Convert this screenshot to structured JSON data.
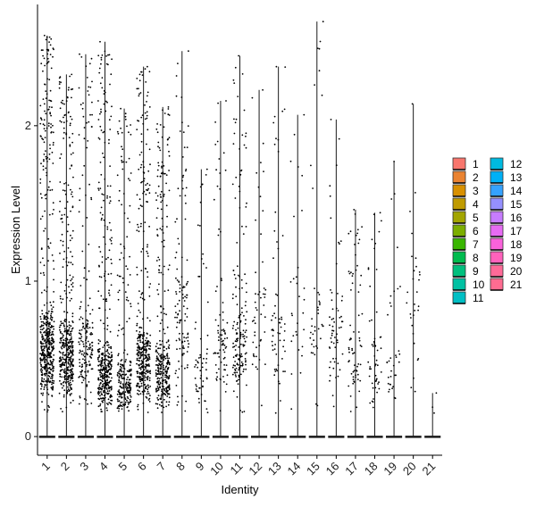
{
  "chart_data": {
    "type": "violin-jitter",
    "xlabel": "Identity",
    "ylabel": "Expression Level",
    "ylim": [
      -0.12,
      2.78
    ],
    "yticks": [
      0,
      1,
      2
    ],
    "categories": [
      "1",
      "2",
      "3",
      "4",
      "5",
      "6",
      "7",
      "8",
      "9",
      "10",
      "11",
      "12",
      "13",
      "14",
      "15",
      "16",
      "17",
      "18",
      "19",
      "20",
      "21"
    ],
    "max_values": [
      2.58,
      2.33,
      2.46,
      2.54,
      2.11,
      2.38,
      2.12,
      2.48,
      1.72,
      2.16,
      2.45,
      2.23,
      2.38,
      2.07,
      2.67,
      2.04,
      1.46,
      1.44,
      1.77,
      2.14,
      0.28
    ],
    "cells_per_cluster": [
      520,
      430,
      180,
      400,
      250,
      380,
      330,
      120,
      60,
      80,
      170,
      50,
      60,
      30,
      40,
      60,
      70,
      55,
      35,
      30,
      3
    ],
    "point_center": [
      0.75,
      0.7,
      0.8,
      0.55,
      0.45,
      0.65,
      0.55,
      1.0,
      0.6,
      0.75,
      0.8,
      1.0,
      0.8,
      1.0,
      1.0,
      0.9,
      0.7,
      0.6,
      0.55,
      1.2,
      0.28
    ],
    "violin_color": "#1a1a1a",
    "point_color": "#000000",
    "legend": {
      "placement": "right",
      "items": [
        {
          "label": "1",
          "color": "#F8766D"
        },
        {
          "label": "2",
          "color": "#EA8331"
        },
        {
          "label": "3",
          "color": "#D89000"
        },
        {
          "label": "4",
          "color": "#C09B00"
        },
        {
          "label": "5",
          "color": "#A3A500"
        },
        {
          "label": "6",
          "color": "#7CAE00"
        },
        {
          "label": "7",
          "color": "#39B600"
        },
        {
          "label": "8",
          "color": "#00BB4E"
        },
        {
          "label": "9",
          "color": "#00BF7D"
        },
        {
          "label": "10",
          "color": "#00C1A3"
        },
        {
          "label": "11",
          "color": "#00BFC4"
        },
        {
          "label": "12",
          "color": "#00BAE0"
        },
        {
          "label": "13",
          "color": "#00B0F6"
        },
        {
          "label": "14",
          "color": "#35A2FF"
        },
        {
          "label": "15",
          "color": "#9590FF"
        },
        {
          "label": "16",
          "color": "#C77CFF"
        },
        {
          "label": "17",
          "color": "#E76BF3"
        },
        {
          "label": "18",
          "color": "#FA62DB"
        },
        {
          "label": "19",
          "color": "#FF62BC"
        },
        {
          "label": "20",
          "color": "#FF6A98"
        },
        {
          "label": "21",
          "color": "#FF6C91"
        }
      ]
    }
  }
}
